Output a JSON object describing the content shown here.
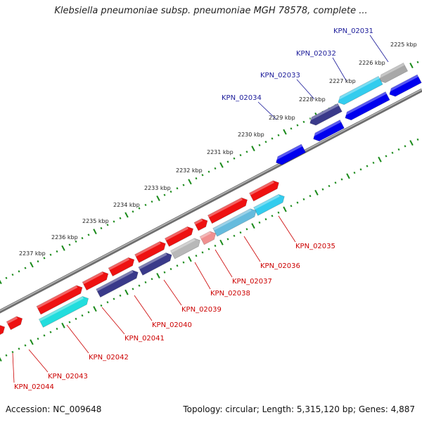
{
  "title": "Klebsiella pneumoniae subsp. pneumoniae MGH 78578, complete ...",
  "footer": {
    "accession": "Accession: NC_009648",
    "topology": "Topology: circular",
    "length": "Length: 5,315,120 bp",
    "genes": "Genes: 4,887",
    "sep": "; "
  },
  "colors": {
    "forward": "#ff0000",
    "reverse": "#0000ff",
    "label_forward": "#cc0000",
    "label_reverse": "#1a1a99",
    "tick": "#1a8a1a",
    "backbone": "#808080"
  },
  "ruler": [
    "2225 kbp",
    "2226 kbp",
    "2227 kbp",
    "2228 kbp",
    "2229 kbp",
    "2230 kbp",
    "2231 kbp",
    "2232 kbp",
    "2233 kbp",
    "2234 kbp",
    "2235 kbp",
    "2236 kbp",
    "2237 kbp"
  ],
  "genes_top": [
    "KPN_02031",
    "KPN_02032",
    "KPN_02033",
    "KPN_02034"
  ],
  "genes_bottom": [
    "KPN_02035",
    "KPN_02036",
    "KPN_02037",
    "KPN_02038",
    "KPN_02039",
    "KPN_02040",
    "KPN_02041",
    "KPN_02042",
    "KPN_02043",
    "KPN_02044"
  ]
}
